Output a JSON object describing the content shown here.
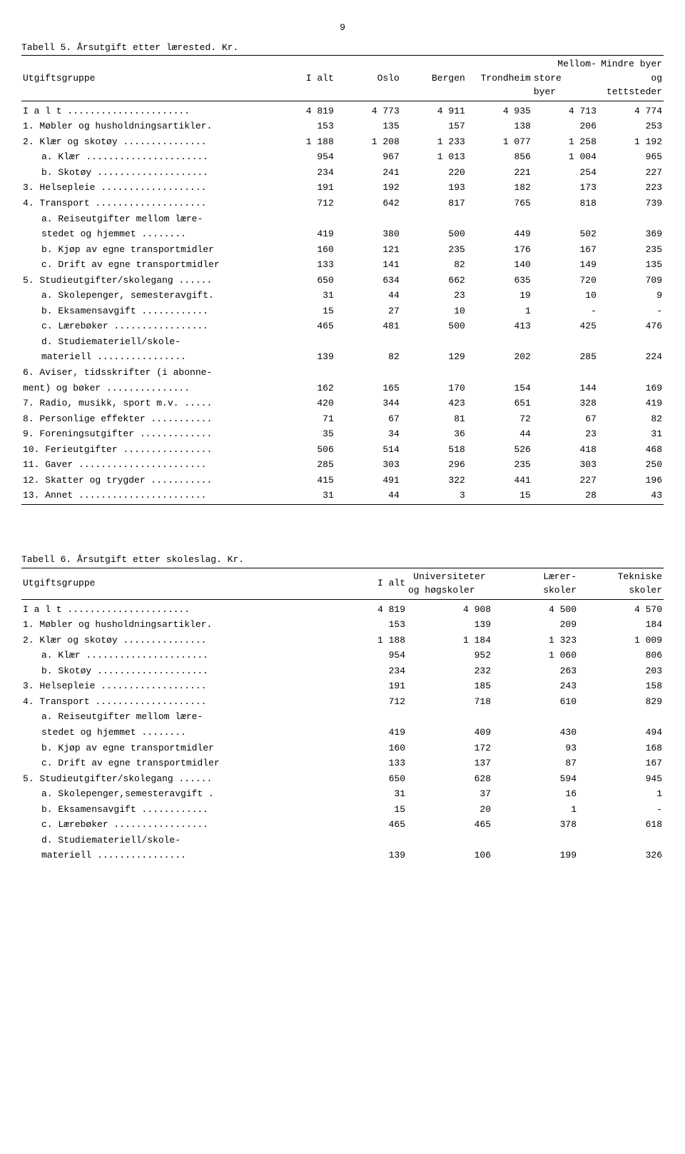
{
  "page_number": "9",
  "table5": {
    "caption": "Tabell 5.  Årsutgift etter lærested.  Kr.",
    "headers": {
      "c0": "Utgiftsgruppe",
      "c1": "I alt",
      "c2": "Oslo",
      "c3": "Bergen",
      "c4": "Trondheim",
      "c5a": "Mellom-",
      "c5b": "store",
      "c5c": "byer",
      "c6a": "Mindre byer",
      "c6b": "og",
      "c6c": "tettsteder"
    },
    "rows": [
      {
        "label": "I  a l t ......................",
        "v": [
          "4 819",
          "4 773",
          "4 911",
          "4 935",
          "4 713",
          "4 774"
        ],
        "spaced": true
      },
      {
        "label": "1. Møbler og husholdningsartikler.",
        "v": [
          "153",
          "135",
          "157",
          "138",
          "206",
          "253"
        ]
      },
      {
        "label": "2. Klær og skotøy ...............",
        "v": [
          "1 188",
          "1 208",
          "1 233",
          "1 077",
          "1 258",
          "1 192"
        ]
      },
      {
        "label": "a. Klær ......................",
        "v": [
          "954",
          "967",
          "1 013",
          "856",
          "1 004",
          "965"
        ],
        "sub": true
      },
      {
        "label": "b. Skotøy ....................",
        "v": [
          "234",
          "241",
          "220",
          "221",
          "254",
          "227"
        ],
        "sub": true
      },
      {
        "label": "3. Helsepleie ...................",
        "v": [
          "191",
          "192",
          "193",
          "182",
          "173",
          "223"
        ]
      },
      {
        "label": "4. Transport ....................",
        "v": [
          "712",
          "642",
          "817",
          "765",
          "818",
          "739"
        ]
      },
      {
        "label": "a. Reiseutgifter mellom lære-",
        "v": [
          "",
          "",
          "",
          "",
          "",
          ""
        ],
        "sub": true
      },
      {
        "label": "   stedet og hjemmet ........",
        "v": [
          "419",
          "380",
          "500",
          "449",
          "502",
          "369"
        ],
        "sub": true
      },
      {
        "label": "b. Kjøp av egne transportmidler",
        "v": [
          "160",
          "121",
          "235",
          "176",
          "167",
          "235"
        ],
        "sub": true
      },
      {
        "label": "c. Drift av egne transportmidler",
        "v": [
          "133",
          "141",
          "82",
          "140",
          "149",
          "135"
        ],
        "sub": true
      },
      {
        "label": "5. Studieutgifter/skolegang ......",
        "v": [
          "650",
          "634",
          "662",
          "635",
          "720",
          "709"
        ]
      },
      {
        "label": "a. Skolepenger, semesteravgift.",
        "v": [
          "31",
          "44",
          "23",
          "19",
          "10",
          "9"
        ],
        "sub": true
      },
      {
        "label": "b. Eksamensavgift ............",
        "v": [
          "15",
          "27",
          "10",
          "1",
          "-",
          "-"
        ],
        "sub": true
      },
      {
        "label": "c. Lærebøker .................",
        "v": [
          "465",
          "481",
          "500",
          "413",
          "425",
          "476"
        ],
        "sub": true
      },
      {
        "label": "d. Studiemateriell/skole-",
        "v": [
          "",
          "",
          "",
          "",
          "",
          ""
        ],
        "sub": true
      },
      {
        "label": "   materiell ................",
        "v": [
          "139",
          "82",
          "129",
          "202",
          "285",
          "224"
        ],
        "sub": true
      },
      {
        "label": "6. Aviser, tidsskrifter (i abonne-",
        "v": [
          "",
          "",
          "",
          "",
          "",
          ""
        ]
      },
      {
        "label": "   ment) og bøker ...............",
        "v": [
          "162",
          "165",
          "170",
          "154",
          "144",
          "169"
        ]
      },
      {
        "label": "7. Radio, musikk, sport m.v. .....",
        "v": [
          "420",
          "344",
          "423",
          "651",
          "328",
          "419"
        ]
      },
      {
        "label": "8. Personlige effekter ...........",
        "v": [
          "71",
          "67",
          "81",
          "72",
          "67",
          "82"
        ]
      },
      {
        "label": "9. Foreningsutgifter .............",
        "v": [
          "35",
          "34",
          "36",
          "44",
          "23",
          "31"
        ]
      },
      {
        "label": "10. Ferieutgifter ................",
        "v": [
          "506",
          "514",
          "518",
          "526",
          "418",
          "468"
        ]
      },
      {
        "label": "11. Gaver .......................",
        "v": [
          "285",
          "303",
          "296",
          "235",
          "303",
          "250"
        ]
      },
      {
        "label": "12. Skatter og trygder ...........",
        "v": [
          "415",
          "491",
          "322",
          "441",
          "227",
          "196"
        ]
      },
      {
        "label": "13. Annet .......................",
        "v": [
          "31",
          "44",
          "3",
          "15",
          "28",
          "43"
        ]
      }
    ]
  },
  "table6": {
    "caption": "Tabell 6.  Årsutgift etter skoleslag.  Kr.",
    "headers": {
      "c0": "Utgiftsgruppe",
      "c1": "I alt",
      "c2a": "Universiteter",
      "c2b": "og høgskoler",
      "c3a": "Lærer-",
      "c3b": "skoler",
      "c4a": "Tekniske",
      "c4b": "skoler"
    },
    "rows": [
      {
        "label": "I  a l t ......................",
        "v": [
          "4 819",
          "4 908",
          "4 500",
          "4 570"
        ],
        "spaced": true
      },
      {
        "label": "1. Møbler og husholdningsartikler.",
        "v": [
          "153",
          "139",
          "209",
          "184"
        ]
      },
      {
        "label": "2. Klær og skotøy ...............",
        "v": [
          "1 188",
          "1 184",
          "1 323",
          "1 009"
        ]
      },
      {
        "label": "a. Klær ......................",
        "v": [
          "954",
          "952",
          "1 060",
          "806"
        ],
        "sub": true
      },
      {
        "label": "b. Skotøy ....................",
        "v": [
          "234",
          "232",
          "263",
          "203"
        ],
        "sub": true
      },
      {
        "label": "3. Helsepleie ...................",
        "v": [
          "191",
          "185",
          "243",
          "158"
        ]
      },
      {
        "label": "4. Transport ....................",
        "v": [
          "712",
          "718",
          "610",
          "829"
        ]
      },
      {
        "label": "a. Reiseutgifter mellom lære-",
        "v": [
          "",
          "",
          "",
          ""
        ],
        "sub": true
      },
      {
        "label": "   stedet og hjemmet ........",
        "v": [
          "419",
          "409",
          "430",
          "494"
        ],
        "sub": true
      },
      {
        "label": "b. Kjøp av egne transportmidler",
        "v": [
          "160",
          "172",
          "93",
          "168"
        ],
        "sub": true
      },
      {
        "label": "c. Drift av egne transportmidler",
        "v": [
          "133",
          "137",
          "87",
          "167"
        ],
        "sub": true
      },
      {
        "label": "5. Studieutgifter/skolegang ......",
        "v": [
          "650",
          "628",
          "594",
          "945"
        ]
      },
      {
        "label": "a. Skolepenger,semesteravgift .",
        "v": [
          "31",
          "37",
          "16",
          "1"
        ],
        "sub": true
      },
      {
        "label": "b. Eksamensavgift ............",
        "v": [
          "15",
          "20",
          "1",
          "-"
        ],
        "sub": true
      },
      {
        "label": "c. Lærebøker .................",
        "v": [
          "465",
          "465",
          "378",
          "618"
        ],
        "sub": true
      },
      {
        "label": "d. Studiemateriell/skole-",
        "v": [
          "",
          "",
          "",
          ""
        ],
        "sub": true
      },
      {
        "label": "   materiell ................",
        "v": [
          "139",
          "106",
          "199",
          "326"
        ],
        "sub": true
      }
    ]
  }
}
